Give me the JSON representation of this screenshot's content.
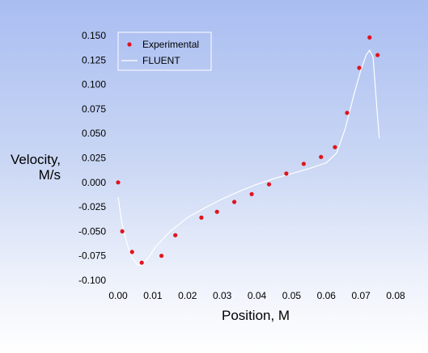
{
  "chart_data": {
    "type": "scatter",
    "title": "",
    "xlabel": "Position, M",
    "ylabel_lines": [
      "Velocity,",
      "M/s"
    ],
    "xlim": [
      0.0,
      0.08
    ],
    "ylim": [
      -0.1,
      0.15
    ],
    "x_ticks": [
      0.0,
      0.01,
      0.02,
      0.03,
      0.04,
      0.05,
      0.06,
      0.07,
      0.08
    ],
    "x_tick_labels": [
      "0.00",
      "0.01",
      "0.02",
      "0.03",
      "0.04",
      "0.05",
      "0.06",
      "0.07",
      "0.08"
    ],
    "y_ticks": [
      -0.1,
      -0.075,
      -0.05,
      -0.025,
      0.0,
      0.025,
      0.05,
      0.075,
      0.1,
      0.125,
      0.15
    ],
    "y_tick_labels": [
      "-0.100",
      "-0.075",
      "-0.050",
      "-0.025",
      "0.000",
      "0.025",
      "0.050",
      "0.075",
      "0.100",
      "0.125",
      "0.150"
    ],
    "grid": false,
    "legend_position": "top-left",
    "series": [
      {
        "name": "Experimental",
        "kind": "markers",
        "color": "#e0141e",
        "points": [
          [
            0.0,
            0.0
          ],
          [
            0.0012,
            -0.05
          ],
          [
            0.004,
            -0.071
          ],
          [
            0.0068,
            -0.082
          ],
          [
            0.0125,
            -0.075
          ],
          [
            0.0165,
            -0.054
          ],
          [
            0.024,
            -0.036
          ],
          [
            0.0285,
            -0.03
          ],
          [
            0.0335,
            -0.02
          ],
          [
            0.0385,
            -0.012
          ],
          [
            0.0435,
            -0.002
          ],
          [
            0.0485,
            0.009
          ],
          [
            0.0535,
            0.019
          ],
          [
            0.0585,
            0.026
          ],
          [
            0.0625,
            0.036
          ],
          [
            0.066,
            0.071
          ],
          [
            0.0695,
            0.117
          ],
          [
            0.0725,
            0.148
          ],
          [
            0.0748,
            0.13
          ]
        ]
      },
      {
        "name": "FLUENT",
        "kind": "line",
        "color": "#ffffff",
        "points": [
          [
            0.0,
            -0.015
          ],
          [
            0.001,
            -0.04
          ],
          [
            0.0025,
            -0.062
          ],
          [
            0.004,
            -0.077
          ],
          [
            0.0055,
            -0.084
          ],
          [
            0.0068,
            -0.085
          ],
          [
            0.0085,
            -0.078
          ],
          [
            0.011,
            -0.065
          ],
          [
            0.015,
            -0.05
          ],
          [
            0.02,
            -0.036
          ],
          [
            0.025,
            -0.026
          ],
          [
            0.03,
            -0.017
          ],
          [
            0.035,
            -0.009
          ],
          [
            0.04,
            -0.002
          ],
          [
            0.045,
            0.004
          ],
          [
            0.05,
            0.009
          ],
          [
            0.055,
            0.014
          ],
          [
            0.06,
            0.02
          ],
          [
            0.063,
            0.03
          ],
          [
            0.0655,
            0.055
          ],
          [
            0.068,
            0.09
          ],
          [
            0.07,
            0.115
          ],
          [
            0.0715,
            0.13
          ],
          [
            0.0725,
            0.135
          ],
          [
            0.0735,
            0.128
          ],
          [
            0.0745,
            0.08
          ],
          [
            0.0753,
            0.045
          ]
        ]
      }
    ]
  }
}
